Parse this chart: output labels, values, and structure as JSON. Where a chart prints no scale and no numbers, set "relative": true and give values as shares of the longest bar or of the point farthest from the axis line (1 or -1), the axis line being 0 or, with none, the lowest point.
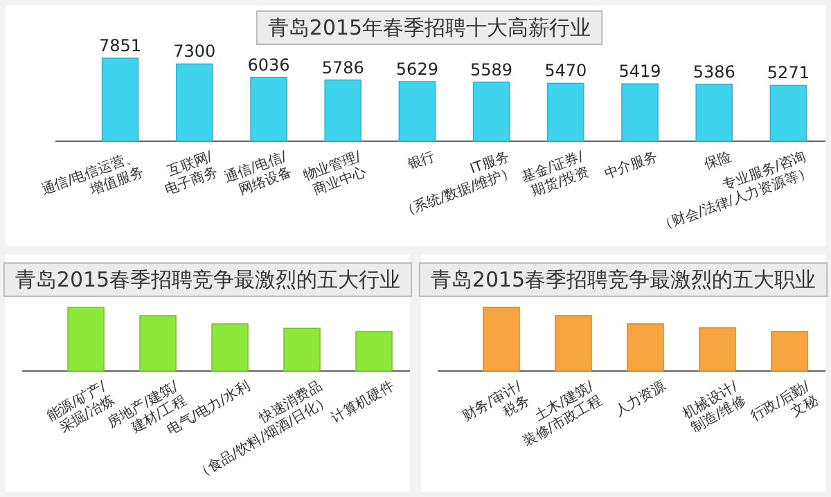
{
  "chart_data": [
    {
      "type": "bar",
      "title": "青岛2015年春季招聘十大高薪行业",
      "categories": [
        "通信/电信运营、\n增值服务",
        "互联网/\n电子商务",
        "通信/电信/\n网络设备",
        "物业管理/\n商业中心",
        "银行",
        "IT服务\n（系统/数据/维护）",
        "基金/证券/\n期货/投资",
        "中介服务",
        "保险",
        "专业服务/咨询\n（财会/法律/人力资源等）"
      ],
      "values": [
        7851,
        7300,
        6036,
        5786,
        5629,
        5589,
        5470,
        5419,
        5386,
        5271
      ],
      "color": "#3fd3ee",
      "data_labels": true
    },
    {
      "type": "bar",
      "title": "青岛2015春季招聘竞争最激烈的五大行业",
      "categories": [
        "能源/矿产/\n采掘/冶炼",
        "房地产/建筑/\n建材/工程",
        "电气/电力/水利",
        "快速消费品\n（食品/饮料/烟酒/日化）",
        "计算机硬件"
      ],
      "values": [
        1,
        0.87,
        0.74,
        0.67,
        0.62
      ],
      "color": "#8ee83a",
      "relative": true
    },
    {
      "type": "bar",
      "title": "青岛2015春季招聘竞争最激烈的五大职业",
      "categories": [
        "财务/审计/\n税务",
        "土木/建筑/\n装修/市政工程",
        "人力资源",
        "机械设计/\n制造/维修",
        "行政/后勤/\n文秘"
      ],
      "values": [
        1,
        0.87,
        0.74,
        0.68,
        0.62
      ],
      "color": "#f7a540",
      "relative": true
    }
  ]
}
